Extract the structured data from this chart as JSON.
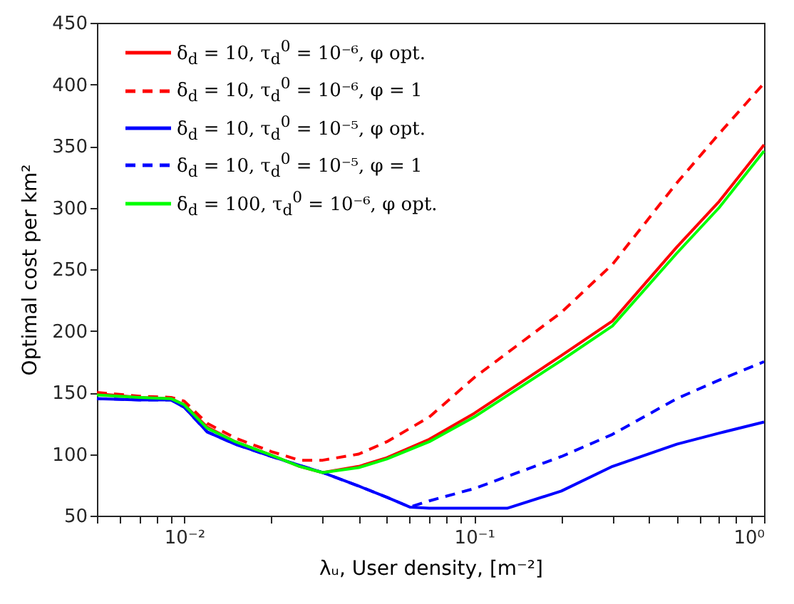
{
  "chart_data": {
    "type": "line",
    "xlabel": "λᵤ, User density, [m⁻²]",
    "ylabel": "Optimal cost per km²",
    "log": "x",
    "xlim": [
      0.005,
      1
    ],
    "ylim": [
      50,
      450
    ],
    "xticks": [
      {
        "value": 0.005,
        "label": null
      },
      {
        "value": 0.006,
        "label": null
      },
      {
        "value": 0.007,
        "label": null
      },
      {
        "value": 0.008,
        "label": null
      },
      {
        "value": 0.009,
        "label": null
      },
      {
        "value": 0.01,
        "label": "10⁻²"
      },
      {
        "value": 0.02,
        "label": null
      },
      {
        "value": 0.03,
        "label": null
      },
      {
        "value": 0.04,
        "label": null
      },
      {
        "value": 0.05,
        "label": null
      },
      {
        "value": 0.06,
        "label": null
      },
      {
        "value": 0.07,
        "label": null
      },
      {
        "value": 0.08,
        "label": null
      },
      {
        "value": 0.09,
        "label": null
      },
      {
        "value": 0.1,
        "label": "10⁻¹"
      },
      {
        "value": 0.2,
        "label": null
      },
      {
        "value": 0.3,
        "label": null
      },
      {
        "value": 0.4,
        "label": null
      },
      {
        "value": 0.5,
        "label": null
      },
      {
        "value": 0.6,
        "label": null
      },
      {
        "value": 0.7,
        "label": null
      },
      {
        "value": 0.8,
        "label": null
      },
      {
        "value": 0.9,
        "label": null
      },
      {
        "value": 1,
        "label": "10⁰"
      }
    ],
    "yticks": [
      50,
      100,
      150,
      200,
      250,
      300,
      350,
      400,
      450
    ],
    "grid": false,
    "legend": "top left",
    "marker": "none",
    "series": [
      {
        "name": "δ$_{d}$ = 10, τ$_{d}$$^{0}$ = 10⁻⁶, φ opt.",
        "color": "#ff0000",
        "line_style": "solid",
        "x": [
          0.005,
          0.007,
          0.009,
          0.01,
          0.012,
          0.015,
          0.02,
          0.025,
          0.03,
          0.04,
          0.05,
          0.07,
          0.1,
          0.2,
          0.3,
          0.5,
          0.7,
          1
        ],
        "values": [
          149,
          146,
          145,
          140,
          122,
          110,
          99,
          90,
          85,
          90,
          97,
          112,
          133,
          180,
          208,
          268,
          305,
          351
        ]
      },
      {
        "name": "δ$_{d}$ = 10, τ$_{d}$$^{0}$ = 10⁻⁶, φ = 1",
        "color": "#ff0000",
        "line_style": "dashed",
        "x": [
          0.005,
          0.007,
          0.009,
          0.01,
          0.012,
          0.015,
          0.02,
          0.025,
          0.03,
          0.04,
          0.05,
          0.07,
          0.1,
          0.2,
          0.3,
          0.5,
          0.7,
          1
        ],
        "values": [
          150,
          147,
          146,
          143,
          125,
          113,
          102,
          95,
          95,
          100,
          110,
          130,
          162,
          215,
          254,
          320,
          360,
          401
        ]
      },
      {
        "name": "δ$_{d}$ = 10, τ$_{d}$$^{0}$ = 10⁻⁵, φ opt.",
        "color": "#0000ff",
        "line_style": "solid",
        "x": [
          0.005,
          0.007,
          0.009,
          0.01,
          0.012,
          0.015,
          0.02,
          0.03,
          0.04,
          0.05,
          0.06,
          0.07,
          0.1,
          0.13,
          0.2,
          0.3,
          0.5,
          0.7,
          1
        ],
        "values": [
          145,
          144,
          144,
          138,
          118,
          108,
          98,
          85,
          74,
          65,
          57,
          56,
          56,
          56,
          70,
          90,
          108,
          117,
          126
        ]
      },
      {
        "name": "δ$_{d}$ = 10, τ$_{d}$$^{0}$ = 10⁻⁵, φ = 1",
        "color": "#0000ff",
        "line_style": "dashed",
        "x": [
          0.005,
          0.007,
          0.009,
          0.01,
          0.012,
          0.015,
          0.02,
          0.03,
          0.04,
          0.05,
          0.06,
          0.07,
          0.1,
          0.2,
          0.3,
          0.5,
          0.7,
          1
        ],
        "values": [
          145,
          144,
          144,
          138,
          118,
          108,
          98,
          85,
          74,
          65,
          57,
          62,
          72,
          98,
          116,
          145,
          160,
          175
        ]
      },
      {
        "name": "δ$_{d}$ = 100, τ$_{d}$$^{0}$ = 10⁻⁶, φ opt.",
        "color": "#00ff00",
        "line_style": "solid",
        "x": [
          0.005,
          0.007,
          0.009,
          0.01,
          0.012,
          0.015,
          0.02,
          0.025,
          0.03,
          0.04,
          0.05,
          0.07,
          0.1,
          0.2,
          0.3,
          0.5,
          0.7,
          1
        ],
        "values": [
          148,
          146,
          145,
          140,
          121,
          110,
          99,
          90,
          85,
          89,
          96,
          110,
          130,
          176,
          204,
          263,
          300,
          346
        ]
      }
    ]
  }
}
